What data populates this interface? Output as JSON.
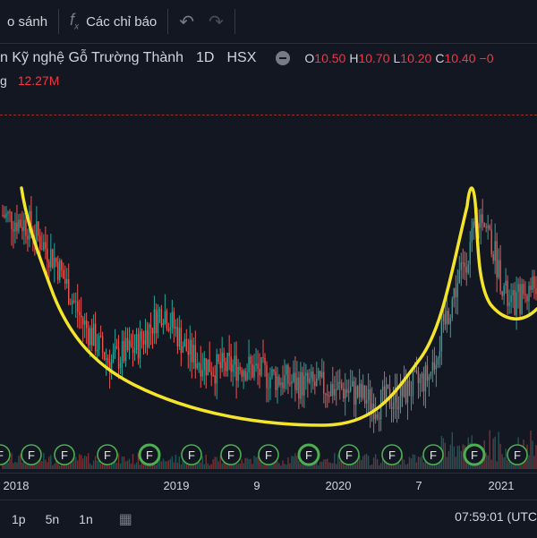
{
  "toolbar": {
    "compare_label": "o sánh",
    "indicators_label": "Các chỉ báo"
  },
  "legend": {
    "symbol_title": "n Kỹ nghệ Gỗ Trường Thành",
    "interval": "1D",
    "exchange": "HSX",
    "ohlc": {
      "o_key": "O",
      "o_val": "10.50",
      "h_key": "H",
      "h_val": "10.70",
      "l_key": "L",
      "l_val": "10.20",
      "c_key": "C",
      "c_val": "10.40",
      "change": "−0"
    },
    "volume_label": "g",
    "volume_value": "12.27M"
  },
  "xaxis": {
    "labels": [
      "2018",
      "2019",
      "9",
      "2020",
      "7",
      "2021"
    ]
  },
  "bottom": {
    "ranges": [
      "1p",
      "5n",
      "1n"
    ],
    "clock": "07:59:01 (UTC"
  },
  "colors": {
    "up": "#26a69a",
    "down": "#ef5350",
    "drawing": "#f5e52a",
    "event_marker": "#4caf50"
  },
  "chart_data": {
    "type": "candlestick",
    "x": [
      "2017-11",
      "2018-01",
      "2018-03",
      "2018-05",
      "2018-07",
      "2018-09",
      "2018-11",
      "2019-01",
      "2019-03",
      "2019-05",
      "2019-07",
      "2019-09",
      "2019-11",
      "2020-01",
      "2020-03",
      "2020-05",
      "2020-07",
      "2020-09",
      "2020-11",
      "2021-01",
      "2021-03"
    ],
    "close": [
      13.5,
      13.2,
      12.2,
      10.5,
      9.4,
      9.8,
      10.9,
      9.6,
      9.2,
      9.3,
      9.0,
      8.8,
      8.7,
      8.6,
      8.2,
      8.5,
      9.0,
      11.5,
      13.6,
      10.9,
      11.6
    ],
    "annotation": "hand-drawn yellow cup curve",
    "event_markers": 14
  }
}
